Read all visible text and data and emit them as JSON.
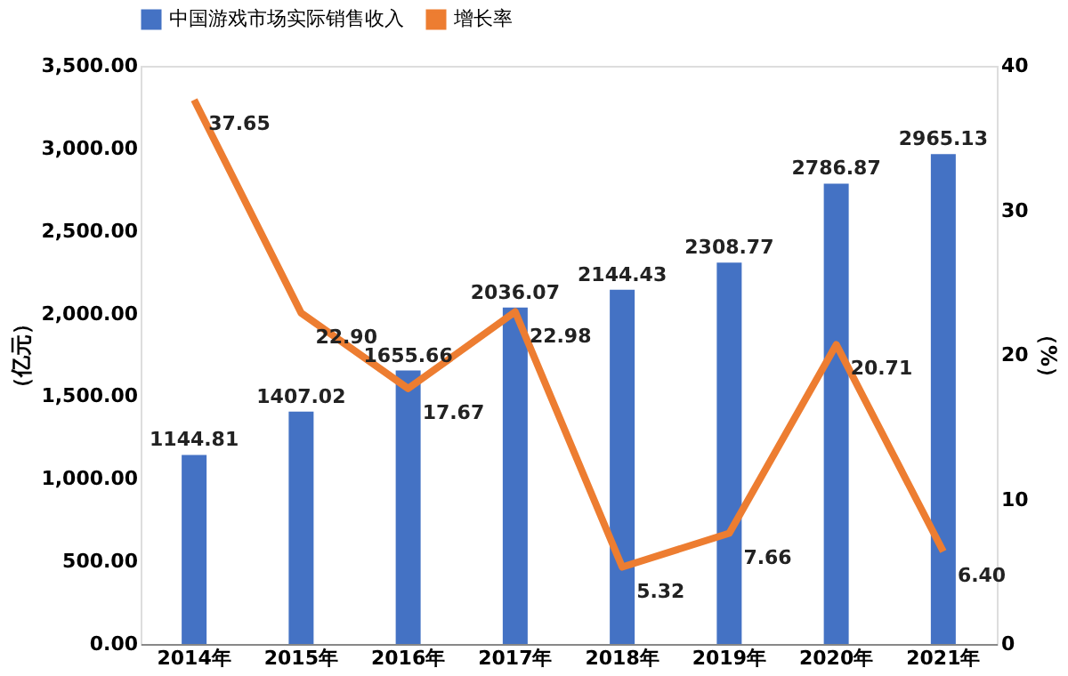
{
  "chart_data": {
    "type": "bar",
    "categories": [
      "2014年",
      "2015年",
      "2016年",
      "2017年",
      "2018年",
      "2019年",
      "2020年",
      "2021年"
    ],
    "ylabel": "（亿元）",
    "y2label": "（%）",
    "ylim": [
      0,
      3500
    ],
    "yticks": [
      {
        "value": 0,
        "label": "0.00"
      },
      {
        "value": 500,
        "label": "500.00"
      },
      {
        "value": 1000,
        "label": "1,000.00"
      },
      {
        "value": 1500,
        "label": "1,500.00"
      },
      {
        "value": 2000,
        "label": "2,000.00"
      },
      {
        "value": 2500,
        "label": "2,500.00"
      },
      {
        "value": 3000,
        "label": "3,000.00"
      },
      {
        "value": 3500,
        "label": "3,500.00"
      }
    ],
    "y2lim": [
      0,
      40
    ],
    "y2ticks": [
      0,
      10,
      20,
      30,
      40
    ],
    "legend": "top",
    "grid": false,
    "series": [
      {
        "name": "中国游戏市场实际销售收入",
        "color": "#4472c4",
        "values": [
          1144.81,
          1407.02,
          1655.66,
          2036.07,
          2144.43,
          2308.77,
          2786.87,
          2965.13
        ],
        "value_labels": [
          "1144.81",
          "1407.02",
          "1655.66",
          "2036.07",
          "2144.43",
          "2308.77",
          "2786.87",
          "2965.13"
        ]
      },
      {
        "name": "增长率",
        "type": "line",
        "axis": "y2",
        "color": "#ed7d31",
        "values": [
          37.65,
          22.9,
          17.67,
          22.98,
          5.32,
          7.66,
          20.71,
          6.4
        ],
        "value_labels": [
          "37.65",
          "22.90",
          "17.67",
          "22.98",
          "5.32",
          "7.66",
          "20.71",
          "6.40"
        ]
      }
    ]
  }
}
